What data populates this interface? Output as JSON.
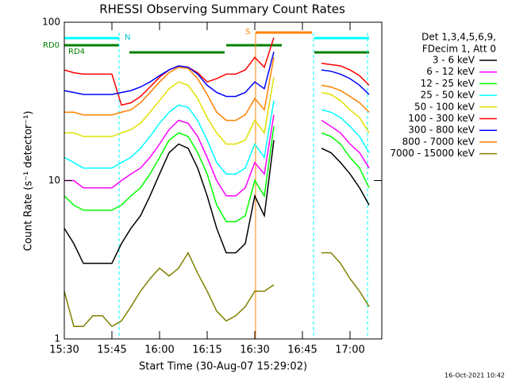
{
  "chart_data": {
    "type": "line",
    "title": "RHESSI Observing Summary Count Rates",
    "xlabel": "Start Time (30-Aug-07 15:29:02)",
    "ylabel": "Count Rate (s⁻¹ detector⁻¹)",
    "legend_title": [
      "Det 1,3,4,5,6,9,",
      "FDecim 1, Att 0"
    ],
    "annotations": [
      "RD0",
      "RD4",
      "N",
      "S"
    ],
    "footer": "16-Oct-2021 10:42",
    "log_y": true,
    "legend": "right",
    "xlim": [
      930,
      1030
    ],
    "xticks": [
      {
        "value": 930,
        "label": "15:30"
      },
      {
        "value": 945,
        "label": "15:45"
      },
      {
        "value": 960,
        "label": "16:00"
      },
      {
        "value": 975,
        "label": "16:15"
      },
      {
        "value": 990,
        "label": "16:30"
      },
      {
        "value": 1005,
        "label": "16:45"
      },
      {
        "value": 1020,
        "label": "17:00"
      }
    ],
    "ylim": [
      1,
      100
    ],
    "yticks": [
      1,
      10,
      100
    ],
    "x": [
      930,
      933,
      936,
      939,
      942,
      945,
      948,
      951,
      954,
      957,
      960,
      963,
      966,
      969,
      972,
      975,
      978,
      981,
      984,
      987,
      990,
      993,
      996,
      999,
      1002,
      1005,
      1008,
      1011,
      1014,
      1017,
      1020,
      1023,
      1026,
      1029
    ],
    "series": [
      {
        "name": "3 - 6 keV",
        "color": "#000000",
        "values": [
          5,
          4,
          3,
          3,
          3,
          3,
          4,
          5,
          6,
          8,
          11,
          15,
          17,
          16,
          12,
          8,
          5,
          3.5,
          3.5,
          4,
          8,
          6,
          18,
          null,
          null,
          null,
          null,
          16,
          15,
          13,
          11,
          9,
          7,
          null
        ]
      },
      {
        "name": "6 - 12 keV",
        "color": "#ff00ff",
        "values": [
          10,
          10,
          9,
          9,
          9,
          9,
          10,
          11,
          12,
          14,
          17,
          21,
          24,
          23,
          19,
          14,
          10,
          8,
          8,
          9,
          13,
          11,
          26,
          null,
          null,
          null,
          null,
          24,
          22,
          20,
          17,
          15,
          12,
          null
        ]
      },
      {
        "name": "12 - 25 keV",
        "color": "#00ff00",
        "values": [
          8,
          7,
          6.5,
          6.5,
          6.5,
          6.5,
          7,
          8,
          9,
          11,
          14,
          18,
          20,
          19,
          15,
          11,
          7,
          5.5,
          5.5,
          6,
          10,
          8,
          22,
          null,
          null,
          null,
          null,
          20,
          19,
          17,
          14,
          12,
          9,
          null
        ]
      },
      {
        "name": "25 - 50 keV",
        "color": "#00ffff",
        "values": [
          14,
          13,
          12,
          12,
          12,
          12,
          13,
          14,
          16,
          19,
          23,
          27,
          30,
          29,
          24,
          18,
          13,
          11,
          11,
          12,
          17,
          14,
          32,
          null,
          null,
          null,
          null,
          28,
          27,
          25,
          22,
          19,
          15,
          null
        ]
      },
      {
        "name": "50 - 100 keV",
        "color": "#e0e000",
        "values": [
          20,
          20,
          19,
          19,
          19,
          19,
          20,
          21,
          23,
          27,
          32,
          38,
          42,
          40,
          33,
          25,
          20,
          17,
          17,
          18,
          24,
          20,
          45,
          null,
          null,
          null,
          null,
          36,
          35,
          32,
          28,
          25,
          20,
          null
        ]
      },
      {
        "name": "100 - 300 keV",
        "color": "#ff0000",
        "values": [
          50,
          48,
          47,
          47,
          47,
          47,
          30,
          31,
          34,
          39,
          45,
          50,
          53,
          52,
          48,
          42,
          44,
          47,
          47,
          50,
          60,
          52,
          80,
          null,
          null,
          null,
          null,
          55,
          54,
          53,
          50,
          46,
          40,
          null
        ]
      },
      {
        "name": "300 - 800 keV",
        "color": "#0000ff",
        "values": [
          37,
          36,
          35,
          35,
          35,
          35,
          36,
          37,
          39,
          42,
          46,
          50,
          53,
          52,
          47,
          40,
          36,
          34,
          34,
          36,
          42,
          38,
          65,
          null,
          null,
          null,
          null,
          50,
          49,
          47,
          44,
          40,
          35,
          null
        ]
      },
      {
        "name": "800 - 7000 keV",
        "color": "#ff8000",
        "values": [
          27,
          27,
          26,
          26,
          26,
          26,
          27,
          28,
          31,
          36,
          42,
          48,
          52,
          51,
          44,
          35,
          27,
          24,
          24,
          26,
          33,
          28,
          60,
          null,
          null,
          null,
          null,
          40,
          39,
          37,
          34,
          31,
          27,
          null
        ]
      },
      {
        "name": "7000 - 15000 keV",
        "color": "#808000",
        "values": [
          2,
          1.2,
          1.2,
          1.4,
          1.4,
          1.2,
          1.3,
          1.6,
          2,
          2.4,
          2.8,
          2.5,
          2.8,
          3.5,
          2.6,
          2,
          1.5,
          1.3,
          1.4,
          1.6,
          2,
          2,
          2.2,
          null,
          null,
          null,
          null,
          3.5,
          3.5,
          3,
          2.4,
          2,
          1.6,
          null
        ]
      }
    ]
  }
}
